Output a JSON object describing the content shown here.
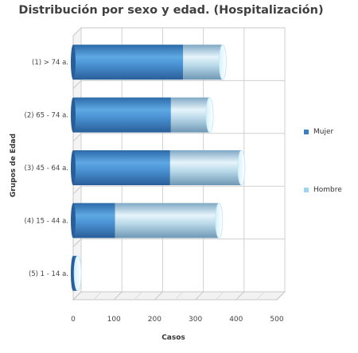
{
  "chart_data": {
    "type": "bar",
    "orientation": "horizontal",
    "stacked": true,
    "style": "3d-cylinder",
    "title": "Distribución por sexo y edad. (Hospitalización)",
    "xlabel": "Casos",
    "ylabel": "Grupos de Edad",
    "categories": [
      "(1) > 74 a.",
      "(2) 65 - 74 a.",
      "(3) 45 - 64 a.",
      "(4) 15 - 44 a.",
      "(5) 1 - 14 a."
    ],
    "series": [
      {
        "name": "Mujer",
        "values": [
          270,
          240,
          238,
          103,
          8
        ],
        "color": "#3a7fbf"
      },
      {
        "name": "Hombre",
        "values": [
          97,
          95,
          175,
          255,
          3
        ],
        "color": "#9fd3ef"
      }
    ],
    "xlim": [
      0,
      500
    ],
    "xticks": [
      0,
      100,
      200,
      300,
      400,
      500
    ],
    "grid": true,
    "legend_position": "right"
  }
}
